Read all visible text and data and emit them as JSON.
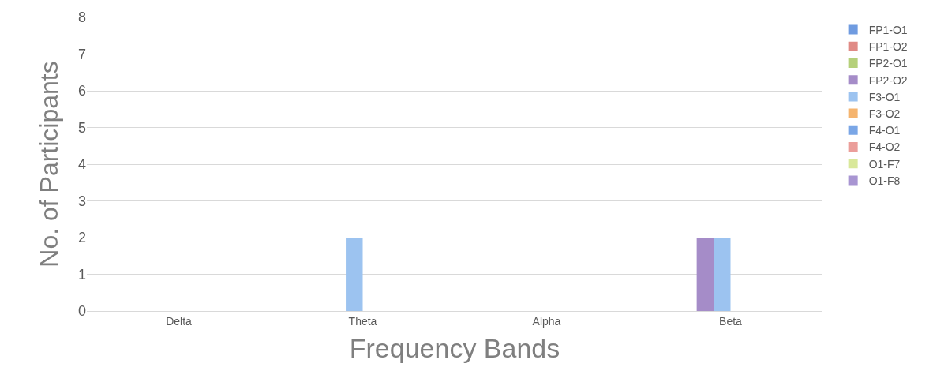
{
  "chart_data": {
    "type": "bar",
    "xlabel": "Frequency Bands",
    "ylabel": "No. of Participants",
    "categories": [
      "Delta",
      "Theta",
      "Alpha",
      "Beta"
    ],
    "series": [
      {
        "name": "FP1-O1",
        "color": "#6f9be0",
        "values": [
          0,
          0,
          0,
          0
        ]
      },
      {
        "name": "FP1-O2",
        "color": "#e08a85",
        "values": [
          0,
          0,
          0,
          0
        ]
      },
      {
        "name": "FP2-O1",
        "color": "#b5d07a",
        "values": [
          0,
          0,
          0,
          0
        ]
      },
      {
        "name": "FP2-O2",
        "color": "#a58cc8",
        "values": [
          0,
          0,
          0,
          2
        ]
      },
      {
        "name": "F3-O1",
        "color": "#9cc3f0",
        "values": [
          0,
          2,
          0,
          2
        ]
      },
      {
        "name": "F3-O2",
        "color": "#f5b46e",
        "values": [
          0,
          0,
          0,
          0
        ]
      },
      {
        "name": "F4-O1",
        "color": "#7aa6e6",
        "values": [
          0,
          0,
          0,
          0
        ]
      },
      {
        "name": "F4-O2",
        "color": "#eb9e9a",
        "values": [
          0,
          0,
          0,
          0
        ]
      },
      {
        "name": "O1-F7",
        "color": "#d9e89a",
        "values": [
          0,
          0,
          0,
          0
        ]
      },
      {
        "name": "O1-F8",
        "color": "#a895d2",
        "values": [
          0,
          0,
          0,
          0
        ]
      }
    ],
    "ylim": [
      0,
      8
    ],
    "yticks": [
      0,
      1,
      2,
      3,
      4,
      5,
      6,
      7,
      8
    ],
    "grid": "y",
    "legend": "right"
  }
}
